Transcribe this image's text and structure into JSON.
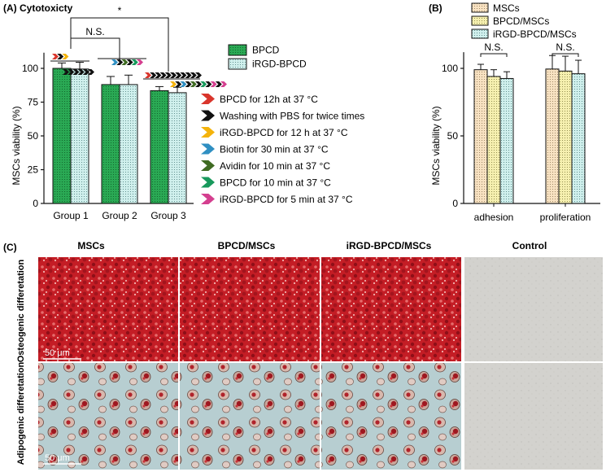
{
  "panel_a": {
    "label": "(A) Cytotoxicty",
    "significance": [
      "*",
      "N.S."
    ],
    "legend": [
      {
        "name": "BPCD",
        "fill": "#1f9e45",
        "pattern": "dots"
      },
      {
        "name": "iRGD-BPCD",
        "fill": "#c6ece9",
        "pattern": "dots"
      }
    ],
    "steps": [
      {
        "text": "BPCD for 12h at 37 °C",
        "color": "#d9352c"
      },
      {
        "text": "Washing with PBS for twice times",
        "color": "#111111"
      },
      {
        "text": "iRGD-BPCD for 12 h at  37 °C",
        "color": "#f4b30b"
      },
      {
        "text": "Biotin for 30 min at 37 °C",
        "color": "#2f8fc2"
      },
      {
        "text": "Avidin for 10 min at 37 °C",
        "color": "#3f6b22"
      },
      {
        "text": "BPCD for 10 min at 37 °C",
        "color": "#18995c"
      },
      {
        "text": "iRGD-BPCD for 5 min at 37 °C",
        "color": "#d43f8f"
      }
    ],
    "protocol_rows": [
      [
        0,
        1,
        2
      ],
      [
        1,
        1,
        1,
        1,
        1,
        1
      ],
      [
        3,
        1,
        4,
        1,
        5,
        6
      ],
      [
        0,
        1,
        1,
        1,
        1,
        1,
        1,
        1,
        1,
        1,
        1
      ],
      [
        2,
        1,
        3,
        1,
        4,
        1,
        5,
        1,
        6,
        1,
        6
      ]
    ]
  },
  "panel_b": {
    "label": "(B)",
    "significance": [
      "N.S.",
      "N.S."
    ]
  },
  "panel_c": {
    "label": "(C)",
    "columns": [
      "MSCs",
      "BPCD/MSCs",
      "iRGD-BPCD/MSCs",
      "Control"
    ],
    "rows": [
      "Osteogenic differetation",
      "Adipogenic differetation"
    ],
    "scale_bar": "50 μm",
    "stain_colors": {
      "alizarin": "#c8202a",
      "background_osteo": "#f2cac8",
      "oil_red_bg": "#b9cfd2",
      "control": "#d2d1cd"
    }
  },
  "chart_data": [
    {
      "type": "bar",
      "title": "",
      "xlabel": "",
      "ylabel": "MSCs viability (%)",
      "ylim": [
        0,
        120
      ],
      "yticks": [
        0,
        25,
        50,
        75,
        100
      ],
      "categories": [
        "Group 1",
        "Group 2",
        "Group 3"
      ],
      "series": [
        {
          "name": "BPCD",
          "color": "#1f9e45",
          "values": [
            100,
            88,
            83.5
          ],
          "errors": [
            4,
            6,
            3
          ]
        },
        {
          "name": "iRGD-BPCD",
          "color": "#c6ece9",
          "values": [
            99.5,
            88,
            82
          ],
          "errors": [
            5,
            7,
            4
          ]
        }
      ],
      "grid": false,
      "legend": "right"
    },
    {
      "type": "bar",
      "title": "",
      "xlabel": "",
      "ylabel": "MSCs viability (%)",
      "ylim": [
        0,
        120
      ],
      "yticks": [
        0,
        50,
        100
      ],
      "categories": [
        "adhesion",
        "proliferation"
      ],
      "series": [
        {
          "name": "MSCs",
          "color": "#f6ddb8",
          "values": [
            99,
            99.5
          ],
          "errors": [
            4,
            10
          ]
        },
        {
          "name": "BPCD/MSCs",
          "color": "#f3eda4",
          "values": [
            94,
            98
          ],
          "errors": [
            5,
            11
          ]
        },
        {
          "name": "iRGD-BPCD/MSCs",
          "color": "#c6ece9",
          "values": [
            92.5,
            96
          ],
          "errors": [
            5,
            10
          ]
        }
      ],
      "grid": false,
      "legend": "top"
    }
  ]
}
